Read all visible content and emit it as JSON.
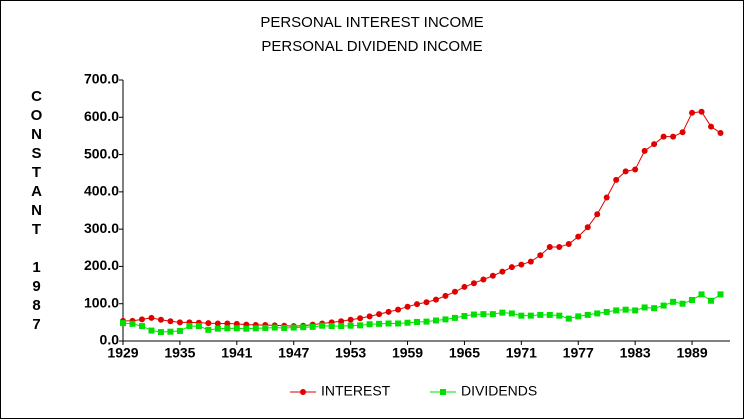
{
  "chart_data": {
    "type": "line",
    "title": "PERSONAL INTEREST INCOME",
    "subtitle": "PERSONAL DIVIDEND INCOME",
    "ylabel": "CONSTANT 1987",
    "x": [
      1929,
      1930,
      1931,
      1932,
      1933,
      1934,
      1935,
      1936,
      1937,
      1938,
      1939,
      1940,
      1941,
      1942,
      1943,
      1944,
      1945,
      1946,
      1947,
      1948,
      1949,
      1950,
      1951,
      1952,
      1953,
      1954,
      1955,
      1956,
      1957,
      1958,
      1959,
      1960,
      1961,
      1962,
      1963,
      1964,
      1965,
      1966,
      1967,
      1968,
      1969,
      1970,
      1971,
      1972,
      1973,
      1974,
      1975,
      1976,
      1977,
      1978,
      1979,
      1980,
      1981,
      1982,
      1983,
      1984,
      1985,
      1986,
      1987,
      1988,
      1989,
      1990,
      1991,
      1992
    ],
    "series": [
      {
        "name": "INTEREST",
        "color": "#e00000",
        "marker": "circle",
        "values": [
          54,
          54,
          58,
          62,
          57,
          53,
          50,
          50,
          49,
          48,
          47,
          47,
          46,
          44,
          43,
          43,
          42,
          41,
          40,
          41,
          44,
          47,
          50,
          53,
          57,
          61,
          66,
          72,
          78,
          84,
          92,
          99,
          104,
          111,
          121,
          132,
          145,
          155,
          165,
          175,
          186,
          198,
          205,
          213,
          230,
          252,
          252,
          260,
          280,
          305,
          340,
          385,
          432,
          455,
          460,
          510,
          528,
          548,
          548,
          560,
          612,
          615,
          575,
          558
        ]
      },
      {
        "name": "DIVIDENDS",
        "color": "#00e000",
        "marker": "square",
        "values": [
          48,
          46,
          40,
          28,
          24,
          25,
          27,
          40,
          40,
          30,
          33,
          34,
          34,
          33,
          34,
          35,
          36,
          35,
          36,
          37,
          38,
          41,
          40,
          40,
          41,
          42,
          45,
          46,
          47,
          47,
          49,
          51,
          52,
          55,
          58,
          62,
          67,
          71,
          72,
          72,
          76,
          74,
          68,
          68,
          70,
          70,
          68,
          60,
          66,
          70,
          74,
          78,
          82,
          84,
          82,
          90,
          88,
          95,
          105,
          100,
          110,
          125,
          108,
          125
        ]
      }
    ],
    "xlim": [
      1929,
      1993
    ],
    "xticks": [
      1929,
      1935,
      1941,
      1947,
      1953,
      1959,
      1965,
      1971,
      1977,
      1983,
      1989
    ],
    "ylim": [
      0,
      700
    ],
    "yticks": [
      {
        "value": 0,
        "label": "0.0"
      },
      {
        "value": 100,
        "label": "100.0"
      },
      {
        "value": 200,
        "label": "200.0"
      },
      {
        "value": 300,
        "label": "300.0"
      },
      {
        "value": 400,
        "label": "400.0"
      },
      {
        "value": 500,
        "label": "500.0"
      },
      {
        "value": 600,
        "label": "600.0"
      },
      {
        "value": 700,
        "label": "700.0"
      }
    ],
    "legend": "bottom"
  }
}
